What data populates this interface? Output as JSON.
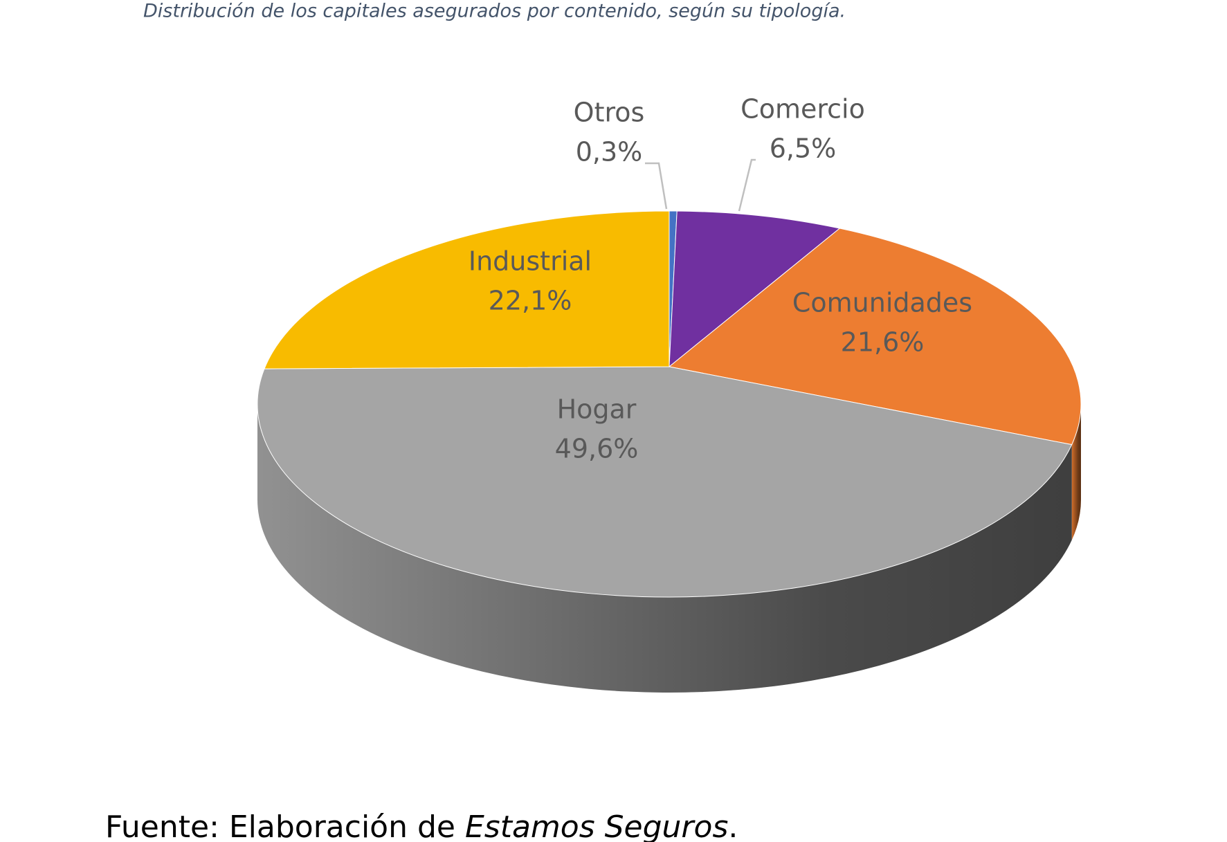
{
  "chart_data": {
    "type": "pie",
    "title": "Distribución de los capitales asegurados por contenido, según su tipología.",
    "categories": [
      "Otros",
      "Comercio",
      "Comunidades",
      "Hogar",
      "Industrial"
    ],
    "values": [
      0.3,
      6.5,
      21.6,
      49.6,
      22.1
    ],
    "value_labels": [
      "0,3%",
      "6,5%",
      "21,6%",
      "49,6%",
      "22,1%"
    ],
    "colors": [
      "#4472c4",
      "#7030a0",
      "#ed7d31",
      "#a5a5a5",
      "#f8bb00"
    ]
  },
  "source": [
    "Fuente: Elaboración de",
    "Estamos Seguros",
    "."
  ]
}
